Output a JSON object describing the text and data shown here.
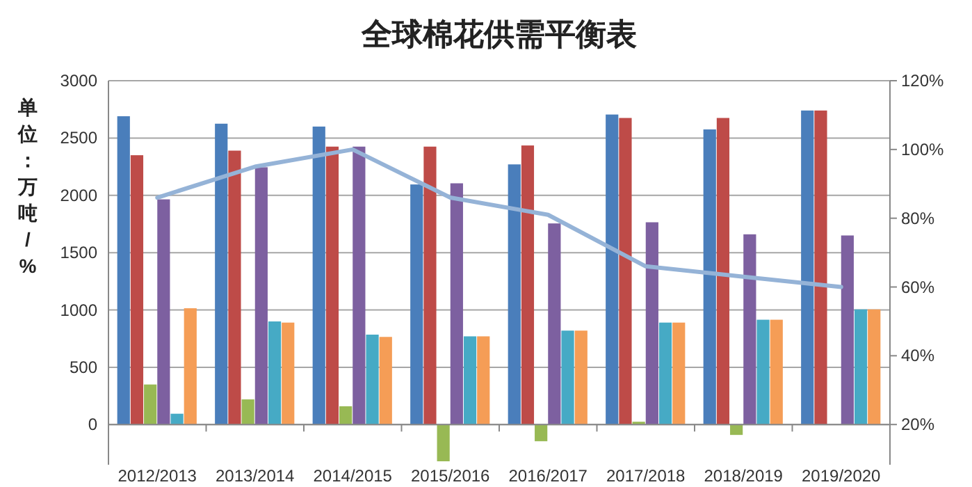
{
  "chart_data": {
    "type": "bar",
    "title": "全球棉花供需平衡表",
    "ylabel": "单位：万吨/%",
    "categories": [
      "2012/2013",
      "2013/2014",
      "2014/2015",
      "2015/2016",
      "2016/2017",
      "2017/2018",
      "2018/2019",
      "2019/2020"
    ],
    "series": [
      {
        "color": "#4a7ebb",
        "values": [
          2690,
          2625,
          2600,
          2095,
          2270,
          2705,
          2575,
          2740
        ]
      },
      {
        "color": "#be4b48",
        "values": [
          2350,
          2390,
          2425,
          2425,
          2435,
          2675,
          2675,
          2740
        ]
      },
      {
        "color": "#98b954",
        "values": [
          350,
          220,
          160,
          -320,
          -145,
          25,
          -90,
          0
        ]
      },
      {
        "color": "#7d60a0",
        "values": [
          1965,
          2245,
          2425,
          2105,
          1755,
          1765,
          1660,
          1650
        ]
      },
      {
        "color": "#46aac5",
        "values": [
          95,
          900,
          785,
          770,
          820,
          890,
          915,
          1005
        ]
      },
      {
        "color": "#f59d56",
        "values": [
          1015,
          890,
          765,
          770,
          820,
          890,
          915,
          1005
        ]
      },
      {
        "type": "line",
        "axis": "y2",
        "color": "#95b3d7",
        "values": [
          86,
          95,
          100,
          86,
          81,
          66,
          63,
          60
        ]
      }
    ],
    "ylim": [
      -350,
      3000
    ],
    "yticks": [
      0,
      500,
      1000,
      1500,
      2000,
      2500,
      3000
    ],
    "y2lim": [
      8.3,
      120
    ],
    "y2ticks": [
      {
        "value": 20,
        "label": "20%"
      },
      {
        "value": 40,
        "label": "40%"
      },
      {
        "value": 60,
        "label": "60%"
      },
      {
        "value": 80,
        "label": "80%"
      },
      {
        "value": 100,
        "label": "100%"
      },
      {
        "value": 120,
        "label": "120%"
      }
    ],
    "grid": "y"
  }
}
